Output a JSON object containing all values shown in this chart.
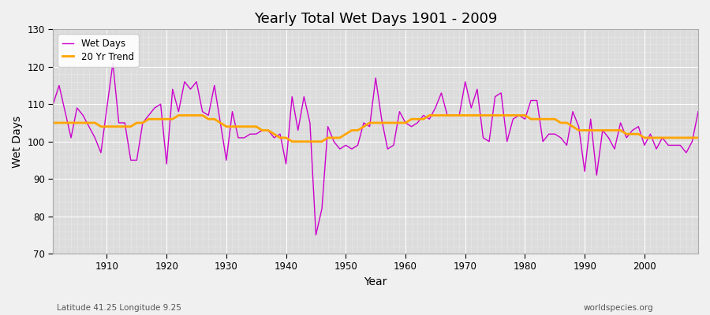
{
  "title": "Yearly Total Wet Days 1901 - 2009",
  "xlabel": "Year",
  "ylabel": "Wet Days",
  "subtitle_left": "Latitude 41.25 Longitude 9.25",
  "subtitle_right": "worldspecies.org",
  "wet_days_color": "#CC00CC",
  "trend_color": "#FFA500",
  "background_color": "#DCDCDC",
  "fig_background": "#F0F0F0",
  "ylim": [
    70,
    130
  ],
  "xlim": [
    1901,
    2009
  ],
  "yticks": [
    70,
    80,
    90,
    100,
    110,
    120,
    130
  ],
  "xticks": [
    1910,
    1920,
    1930,
    1940,
    1950,
    1960,
    1970,
    1980,
    1990,
    2000
  ],
  "wet_days": [
    110,
    115,
    108,
    101,
    109,
    107,
    104,
    101,
    97,
    109,
    121,
    105,
    105,
    95,
    95,
    105,
    107,
    109,
    110,
    94,
    114,
    108,
    116,
    114,
    116,
    108,
    107,
    115,
    105,
    95,
    108,
    101,
    101,
    102,
    102,
    103,
    103,
    101,
    102,
    94,
    112,
    103,
    112,
    105,
    75,
    82,
    104,
    100,
    98,
    99,
    98,
    99,
    105,
    104,
    117,
    106,
    98,
    99,
    108,
    105,
    104,
    105,
    107,
    106,
    109,
    113,
    107,
    107,
    107,
    116,
    109,
    114,
    101,
    100,
    112,
    113,
    100,
    106,
    107,
    106,
    111,
    111,
    100,
    102,
    102,
    101,
    99,
    108,
    104,
    92,
    106,
    91,
    103,
    101,
    98,
    105,
    101,
    103,
    104,
    99,
    102,
    98,
    101,
    99,
    99,
    99,
    97,
    100,
    108
  ],
  "trend": [
    105,
    105,
    105,
    105,
    105,
    105,
    105,
    105,
    104,
    104,
    104,
    104,
    104,
    104,
    105,
    105,
    106,
    106,
    106,
    106,
    106,
    107,
    107,
    107,
    107,
    107,
    106,
    106,
    105,
    104,
    104,
    104,
    104,
    104,
    104,
    103,
    103,
    102,
    101,
    101,
    100,
    100,
    100,
    100,
    100,
    100,
    101,
    101,
    101,
    102,
    103,
    103,
    104,
    105,
    105,
    105,
    105,
    105,
    105,
    105,
    106,
    106,
    106,
    107,
    107,
    107,
    107,
    107,
    107,
    107,
    107,
    107,
    107,
    107,
    107,
    107,
    107,
    107,
    107,
    107,
    106,
    106,
    106,
    106,
    106,
    105,
    105,
    104,
    103,
    103,
    103,
    103,
    103,
    103,
    103,
    103,
    102,
    102,
    102,
    101,
    101,
    101,
    101,
    101,
    101,
    101,
    101,
    101,
    101
  ]
}
